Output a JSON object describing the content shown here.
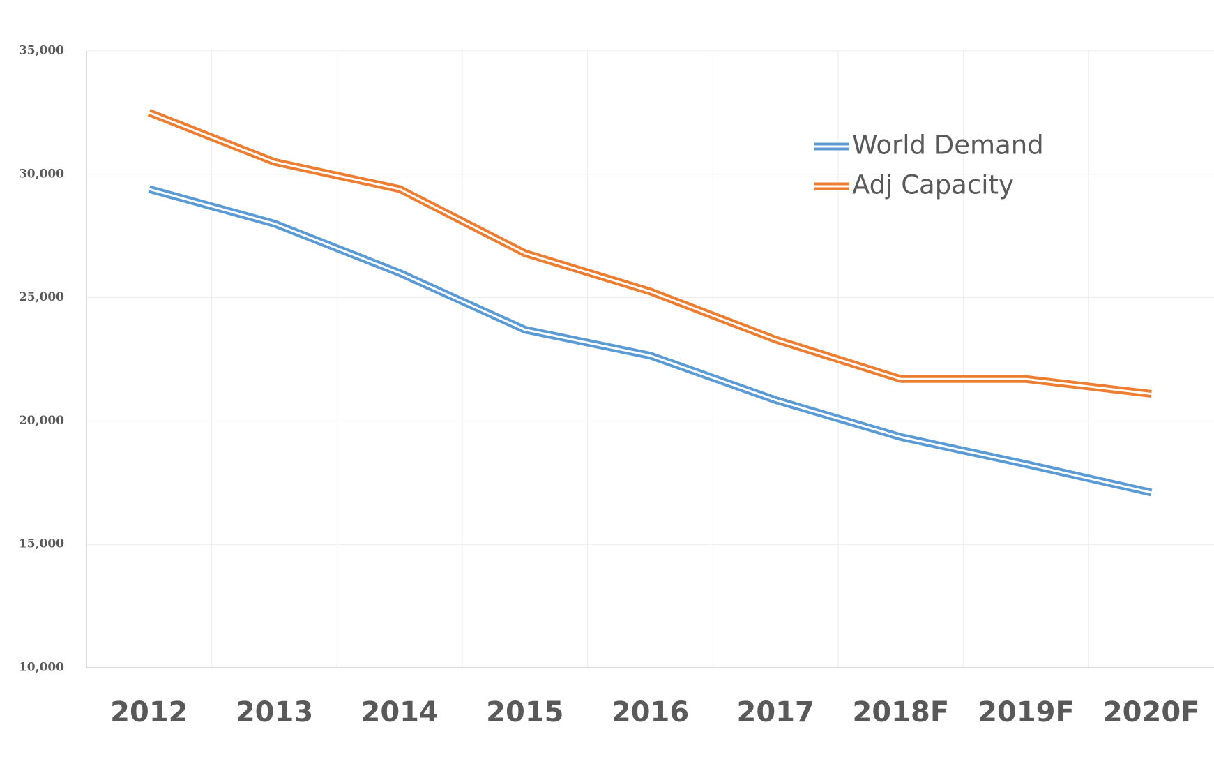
{
  "chart_data": {
    "type": "line",
    "categories": [
      "2012",
      "2013",
      "2014",
      "2015",
      "2016",
      "2017",
      "2018F",
      "2019F",
      "2020F"
    ],
    "series": [
      {
        "name": "World Demand",
        "color": "#5b9bd5",
        "values": [
          29400,
          28000,
          26000,
          23700,
          22650,
          20850,
          19350,
          18250,
          17100
        ]
      },
      {
        "name": "Adj Capacity",
        "color": "#ed7d31",
        "values": [
          32500,
          30500,
          29400,
          26800,
          25250,
          23300,
          21700,
          21700,
          21100
        ]
      }
    ],
    "ylim": [
      10000,
      35000
    ],
    "yticks": [
      {
        "value": 10000,
        "label": "10,000"
      },
      {
        "value": 15000,
        "label": "15,000"
      },
      {
        "value": 20000,
        "label": "20,000"
      },
      {
        "value": 25000,
        "label": "25,000"
      },
      {
        "value": 30000,
        "label": "30,000"
      },
      {
        "value": 35000,
        "label": "35,000"
      }
    ],
    "grid": true,
    "legend": "upper right"
  }
}
